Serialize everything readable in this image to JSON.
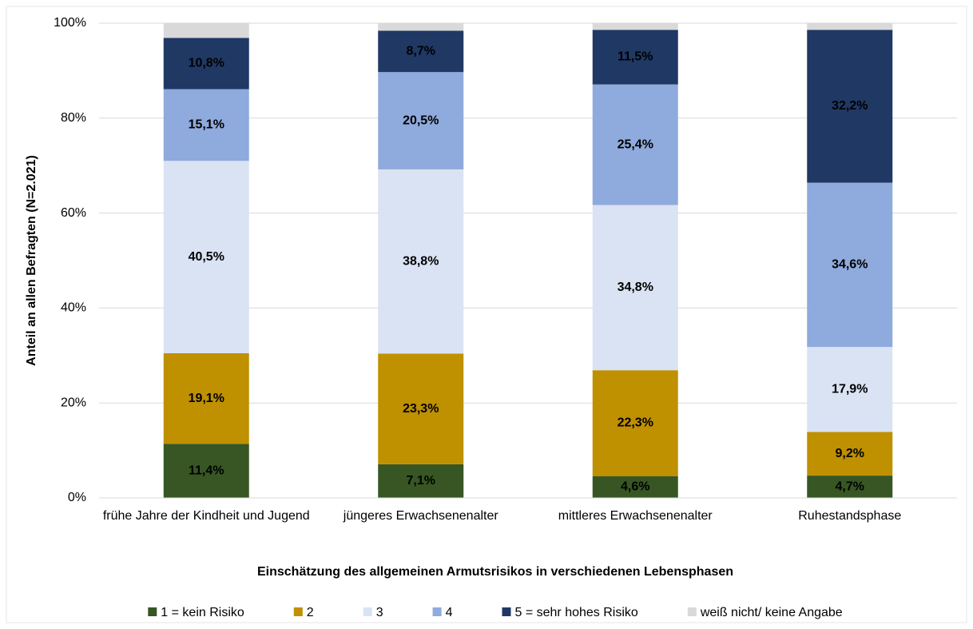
{
  "chart_data": {
    "type": "stacked_bar",
    "categories": [
      "frühe Jahre der Kindheit und Jugend",
      "jüngeres Erwachsenenalter",
      "mittleres Erwachsenenalter",
      "Ruhestandsphase"
    ],
    "series": [
      {
        "name": "1 = kein Risiko",
        "color": "#375623",
        "values": [
          11.4,
          7.1,
          4.6,
          4.7
        ],
        "value_labels": [
          "11,4%",
          "7,1%",
          "4,6%",
          "4,7%"
        ]
      },
      {
        "name": "2",
        "color": "#bf9000",
        "values": [
          19.1,
          23.3,
          22.3,
          9.2
        ],
        "value_labels": [
          "19,1%",
          "23,3%",
          "22,3%",
          "9,2%"
        ]
      },
      {
        "name": "3",
        "color": "#dae3f3",
        "values": [
          40.5,
          38.8,
          34.8,
          17.9
        ],
        "value_labels": [
          "40,5%",
          "38,8%",
          "34,8%",
          "17,9%"
        ]
      },
      {
        "name": "4",
        "color": "#8faadc",
        "values": [
          15.1,
          20.5,
          25.4,
          34.6
        ],
        "value_labels": [
          "15,1%",
          "20,5%",
          "25,4%",
          "34,6%"
        ]
      },
      {
        "name": "5 = sehr hohes Risiko",
        "color": "#203864",
        "values": [
          10.8,
          8.7,
          11.5,
          32.2
        ],
        "value_labels": [
          "10,8%",
          "8,7%",
          "11,5%",
          "32,2%"
        ]
      },
      {
        "name": "weiß nicht/ keine Angabe",
        "color": "#d9d9d9",
        "values": [
          3.1,
          1.6,
          1.4,
          1.4
        ]
      }
    ],
    "xlabel": "Einschätzung des allgemeinen Armutsrisikos in verschiedenen Lebensphasen",
    "ylabel": "Anteil an allen Befragten (N=2.021)",
    "ylim": [
      0,
      100
    ],
    "yticks": [
      {
        "value": 0,
        "label": "0%"
      },
      {
        "value": 20,
        "label": "20%"
      },
      {
        "value": 40,
        "label": "40%"
      },
      {
        "value": 60,
        "label": "60%"
      },
      {
        "value": 80,
        "label": "80%"
      },
      {
        "value": 100,
        "label": "100%"
      }
    ],
    "grid": true,
    "legend": "bottom"
  }
}
